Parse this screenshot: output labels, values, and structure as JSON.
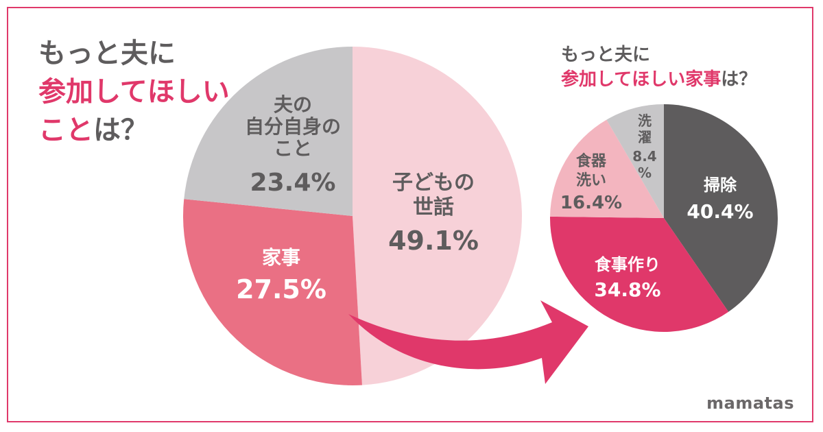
{
  "title_left": {
    "line1": "もっと夫に",
    "line2": "参加してほしい",
    "line3_accent": "こと",
    "line3_rest": "は？"
  },
  "title_right": {
    "line1": "もっと夫に",
    "line2_accent": "参加してほしい家事",
    "line2_rest": "は？"
  },
  "brand": "mamatas",
  "colors": {
    "frame": "#e0386a",
    "childcare": "#f7d1d8",
    "housework": "#ea7084",
    "self": "#c7c6c8",
    "cleaning": "#5e5c5d",
    "cooking": "#e0386a",
    "dishes": "#f3b5bf",
    "laundry": "#c7c6c8",
    "arrow": "#e0386a"
  },
  "chart_data": [
    {
      "type": "pie",
      "title": "もっと夫に参加してほしいことは？",
      "slices": [
        {
          "key": "childcare",
          "label": [
            "子どもの",
            "世話"
          ],
          "pct": "49.1%",
          "value": 49.1
        },
        {
          "key": "housework",
          "label": [
            "家事"
          ],
          "pct": "27.5%",
          "value": 27.5
        },
        {
          "key": "self",
          "label": [
            "夫の",
            "自分自身の",
            "こと"
          ],
          "pct": "23.4%",
          "value": 23.4
        }
      ]
    },
    {
      "type": "pie",
      "title": "もっと夫に参加してほしい家事は？",
      "slices": [
        {
          "key": "cleaning",
          "label": [
            "掃除"
          ],
          "pct": "40.4%",
          "value": 40.4
        },
        {
          "key": "cooking",
          "label": [
            "食事作り"
          ],
          "pct": "34.8%",
          "value": 34.8
        },
        {
          "key": "dishes",
          "label": [
            "食器",
            "洗い"
          ],
          "pct": "16.4%",
          "value": 16.4
        },
        {
          "key": "laundry",
          "label": [
            "洗",
            "濯"
          ],
          "pct": "8.4",
          "pct_unit": "%",
          "value": 8.4
        }
      ]
    }
  ]
}
